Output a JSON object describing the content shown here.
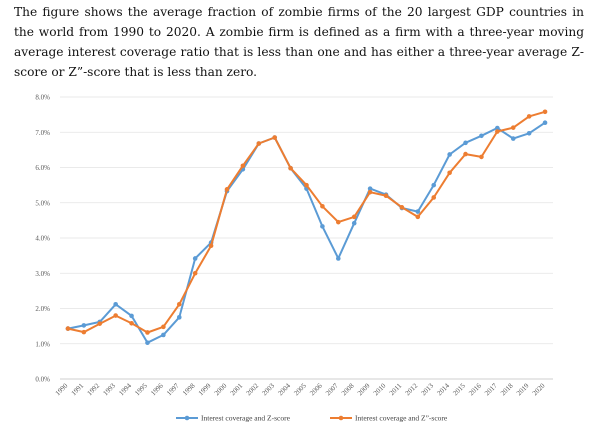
{
  "caption": "The figure shows the average fraction of zombie firms of the 20 largest GDP countries in the world from 1990 to 2020. A zombie firm is defined as a firm with a three-year moving average interest coverage ratio that is less than one and has either a three-year average Z-score or Z”-score that is less than zero.",
  "chart_data": {
    "type": "line",
    "title": "",
    "xlabel": "",
    "ylabel": "",
    "ylim": [
      0,
      8
    ],
    "grid": true,
    "legend_position": "bottom",
    "x": [
      "1990",
      "1991",
      "1992",
      "1993",
      "1994",
      "1995",
      "1996",
      "1997",
      "1998",
      "1999",
      "2000",
      "2001",
      "2002",
      "2003",
      "2004",
      "2005",
      "2006",
      "2007",
      "2008",
      "2009",
      "2010",
      "2011",
      "2012",
      "2013",
      "2014",
      "2015",
      "2016",
      "2017",
      "2018",
      "2019",
      "2020"
    ],
    "y_ticks": [
      "0.0%",
      "1.0%",
      "2.0%",
      "3.0%",
      "4.0%",
      "5.0%",
      "6.0%",
      "7.0%",
      "8.0%"
    ],
    "series": [
      {
        "name": "Interest coverage and Z-score",
        "color": "#5B9BD5",
        "values": [
          1.43,
          1.52,
          1.62,
          2.12,
          1.79,
          1.03,
          1.25,
          1.75,
          3.42,
          3.87,
          5.33,
          5.95,
          6.68,
          6.85,
          5.98,
          5.4,
          4.33,
          3.42,
          4.42,
          5.4,
          5.23,
          4.85,
          4.75,
          5.5,
          6.37,
          6.7,
          6.9,
          7.12,
          6.82,
          6.97,
          7.27
        ]
      },
      {
        "name": "Interest coverage and Z”-score",
        "color": "#ED7D31",
        "values": [
          1.43,
          1.33,
          1.57,
          1.8,
          1.58,
          1.32,
          1.48,
          2.12,
          3.0,
          3.78,
          5.38,
          6.05,
          6.68,
          6.85,
          5.98,
          5.5,
          4.9,
          4.45,
          4.6,
          5.3,
          5.2,
          4.87,
          4.6,
          5.15,
          5.85,
          6.38,
          6.3,
          7.02,
          7.13,
          7.45,
          7.58
        ]
      }
    ]
  }
}
